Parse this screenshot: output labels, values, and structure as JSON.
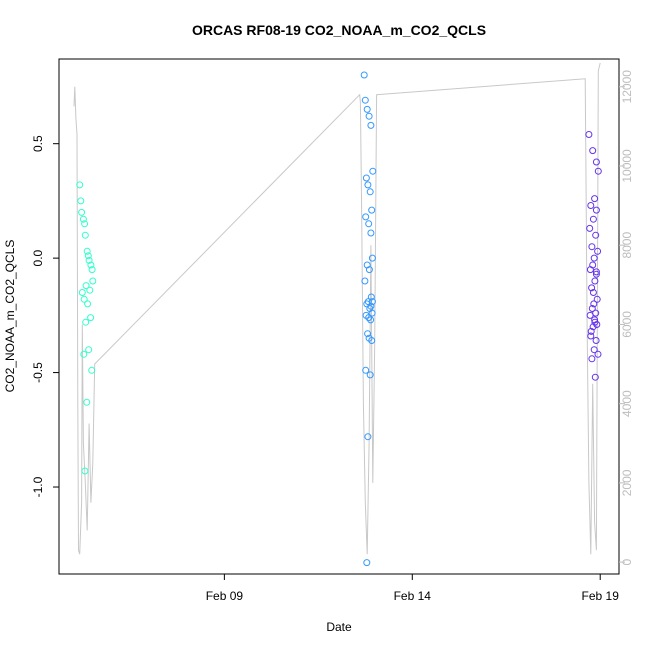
{
  "chart_data": {
    "type": "scatter",
    "title": "ORCAS RF08-19 CO2_NOAA_m_CO2_QCLS",
    "xlabel": "Date",
    "ylabel": "CO2_NOAA_m_CO2_QCLS",
    "x_ticks": [
      "Feb 09",
      "Feb 14",
      "Feb 19"
    ],
    "x_tick_days": [
      9,
      14,
      19
    ],
    "xlim_days": [
      4.6,
      19.5
    ],
    "y_ticks": [
      "-1.0",
      "-0.5",
      "0.0",
      "0.5"
    ],
    "y_tick_values": [
      -1.0,
      -0.5,
      0.0,
      0.5
    ],
    "ylim": [
      -1.38,
      0.87
    ],
    "y2_ticks": [
      "0",
      "2000",
      "4000",
      "6000",
      "8000",
      "10000",
      "12000"
    ],
    "y2_tick_values": [
      0,
      2000,
      4000,
      6000,
      8000,
      10000,
      12000
    ],
    "y2lim": [
      -300,
      12700
    ],
    "grid": false,
    "legend": "none",
    "colors": {
      "flight_1": "#33ffcc",
      "flight_2": "#3399ff",
      "flight_3": "#6633ee",
      "altitude_line": "#c8c8c8",
      "axis": "#000000",
      "y2_axis": "#bdbdbd"
    },
    "series": [
      {
        "color_key": "flight_1",
        "x": [
          5.15,
          5.18,
          5.2,
          5.25,
          5.28,
          5.3,
          5.35,
          5.38,
          5.4,
          5.45,
          5.48,
          5.5,
          5.32,
          5.42,
          5.22,
          5.27,
          5.36,
          5.44,
          5.31,
          5.39,
          5.26,
          5.47,
          5.34,
          5.29
        ],
        "y": [
          0.32,
          0.25,
          0.2,
          0.17,
          0.15,
          0.1,
          0.03,
          0.01,
          -0.01,
          -0.03,
          -0.05,
          -0.1,
          -0.12,
          -0.14,
          -0.15,
          -0.18,
          -0.2,
          -0.26,
          -0.28,
          -0.4,
          -0.42,
          -0.49,
          -0.63,
          -0.93
        ]
      },
      {
        "color_key": "flight_2",
        "x": [
          12.72,
          12.75,
          12.8,
          12.85,
          12.9,
          12.95,
          12.78,
          12.82,
          12.88,
          12.92,
          12.76,
          12.84,
          12.9,
          12.94,
          12.8,
          12.86,
          12.74,
          12.91,
          12.83,
          12.79,
          12.87,
          12.93,
          12.77,
          12.89,
          12.81,
          12.85,
          12.92,
          12.76,
          12.88,
          12.82,
          12.79,
          12.9,
          12.84,
          12.94
        ],
        "y": [
          0.8,
          0.69,
          0.65,
          0.62,
          0.58,
          0.38,
          0.35,
          0.32,
          0.29,
          0.21,
          0.18,
          0.15,
          0.11,
          0.0,
          -0.03,
          -0.05,
          -0.1,
          -0.17,
          -0.19,
          -0.2,
          -0.22,
          -0.24,
          -0.25,
          -0.27,
          -0.33,
          -0.35,
          -0.36,
          -0.49,
          -0.51,
          -0.78,
          -1.33,
          -0.21,
          -0.26,
          -0.19
        ]
      },
      {
        "color_key": "flight_3",
        "x": [
          18.7,
          18.8,
          18.9,
          18.95,
          18.85,
          18.75,
          18.9,
          18.82,
          18.72,
          18.88,
          18.78,
          18.93,
          18.84,
          18.8,
          18.74,
          18.9,
          18.86,
          18.77,
          18.92,
          18.83,
          18.79,
          18.88,
          18.73,
          18.85,
          18.91,
          18.81,
          18.76,
          18.89,
          18.84,
          18.94,
          18.78,
          18.87,
          18.82,
          18.9,
          18.75,
          18.86
        ],
        "y": [
          0.54,
          0.47,
          0.42,
          0.38,
          0.26,
          0.23,
          0.21,
          0.17,
          0.13,
          0.1,
          0.05,
          0.03,
          0.0,
          -0.03,
          -0.05,
          -0.07,
          -0.1,
          -0.13,
          -0.18,
          -0.2,
          -0.22,
          -0.24,
          -0.25,
          -0.27,
          -0.29,
          -0.3,
          -0.32,
          -0.36,
          -0.4,
          -0.42,
          -0.44,
          -0.52,
          -0.15,
          -0.06,
          -0.34,
          -0.28
        ]
      }
    ],
    "altitude": {
      "axis": "right",
      "x": [
        5.0,
        5.02,
        5.05,
        5.08,
        5.1,
        5.12,
        5.15,
        5.2,
        5.22,
        5.25,
        5.3,
        5.35,
        5.4,
        5.45,
        5.5,
        5.55,
        12.6,
        12.62,
        12.65,
        12.7,
        12.75,
        12.8,
        12.85,
        12.9,
        12.95,
        13.0,
        13.05,
        18.6,
        18.62,
        18.65,
        18.7,
        18.75,
        18.8,
        18.85,
        18.9,
        18.95,
        19.0
      ],
      "y": [
        11500,
        12000,
        11200,
        10800,
        4000,
        300,
        200,
        1500,
        6000,
        3000,
        2000,
        800,
        3500,
        1500,
        2500,
        5000,
        11800,
        11600,
        9000,
        4000,
        1500,
        200,
        3000,
        8000,
        2000,
        5500,
        11800,
        12200,
        10000,
        6000,
        2000,
        200,
        4500,
        1000,
        300,
        12400,
        12600
      ]
    }
  }
}
